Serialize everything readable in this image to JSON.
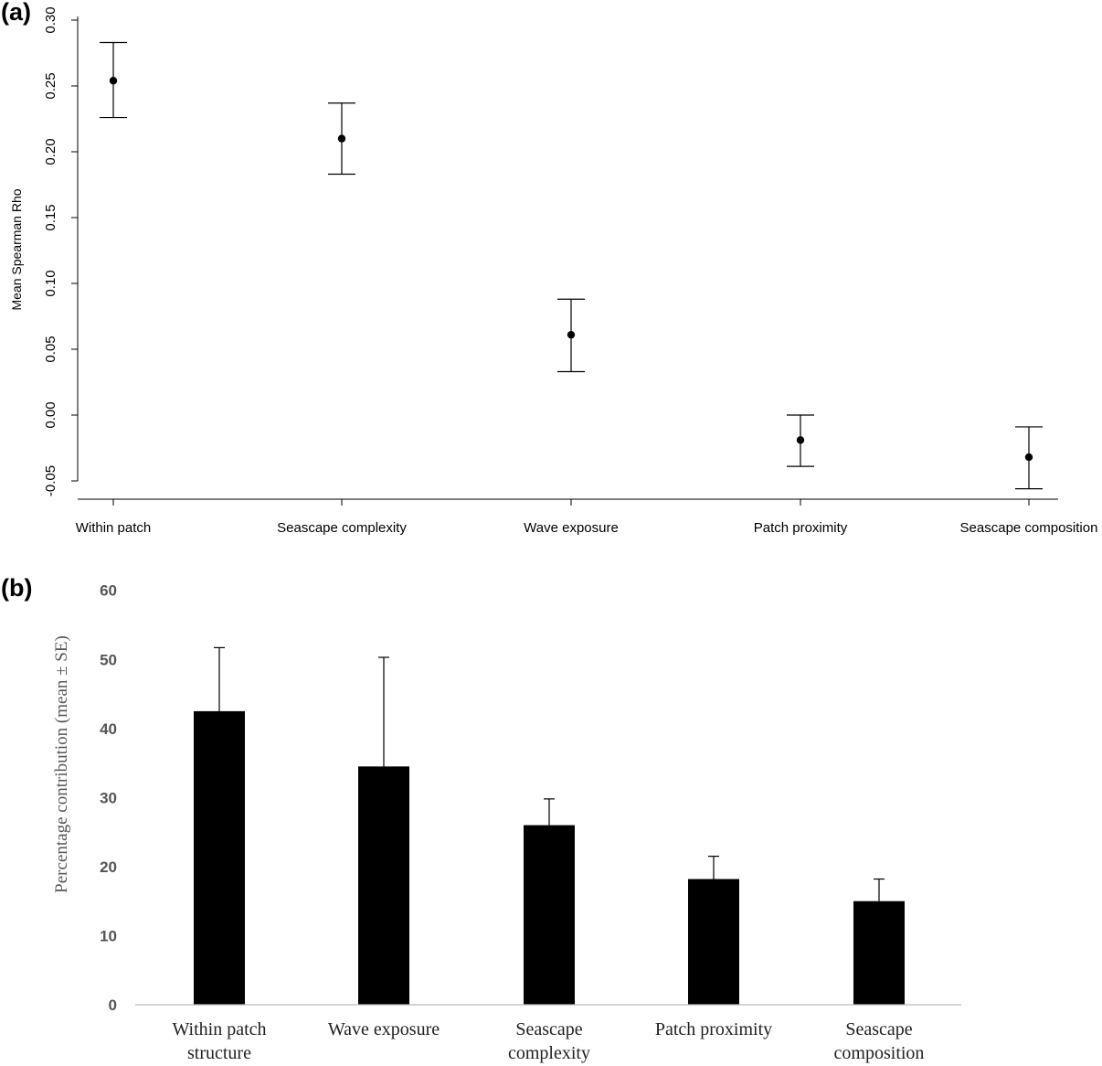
{
  "chart_data": [
    {
      "panel_label": "(a)",
      "type": "scatter",
      "style": "point with error bars",
      "categories": [
        "Within patch",
        "Seascape complexity",
        "Wave exposure",
        "Patch proximity",
        "Seascape composition"
      ],
      "values": [
        0.254,
        0.21,
        0.061,
        -0.019,
        -0.032
      ],
      "error_lower": [
        0.226,
        0.183,
        0.033,
        -0.039,
        -0.056
      ],
      "error_upper": [
        0.283,
        0.237,
        0.088,
        0.0,
        -0.009
      ],
      "ylabel": "Mean Spearman Rho",
      "yticks": [
        "-0.05",
        "0.00",
        "0.05",
        "0.10",
        "0.15",
        "0.20",
        "0.25",
        "0.30"
      ],
      "ylim": [
        -0.065,
        0.3
      ],
      "grid": false
    },
    {
      "panel_label": "(b)",
      "type": "bar",
      "style": "bars with upper SE whiskers",
      "categories": [
        [
          "Within patch",
          "structure"
        ],
        [
          "Wave exposure"
        ],
        [
          "Seascape",
          "complexity"
        ],
        [
          "Patch proximity"
        ],
        [
          "Seascape",
          "composition"
        ]
      ],
      "values": [
        42.5,
        34.5,
        26.0,
        18.2,
        15.0
      ],
      "se": [
        9.2,
        15.8,
        3.8,
        3.3,
        3.2
      ],
      "ylabel": "Percentage contribution (mean ± SE)",
      "yticks": [
        "0",
        "10",
        "20",
        "30",
        "40",
        "50",
        "60"
      ],
      "ylim": [
        0,
        60
      ],
      "bar_color": "#000000",
      "grid": false
    }
  ]
}
